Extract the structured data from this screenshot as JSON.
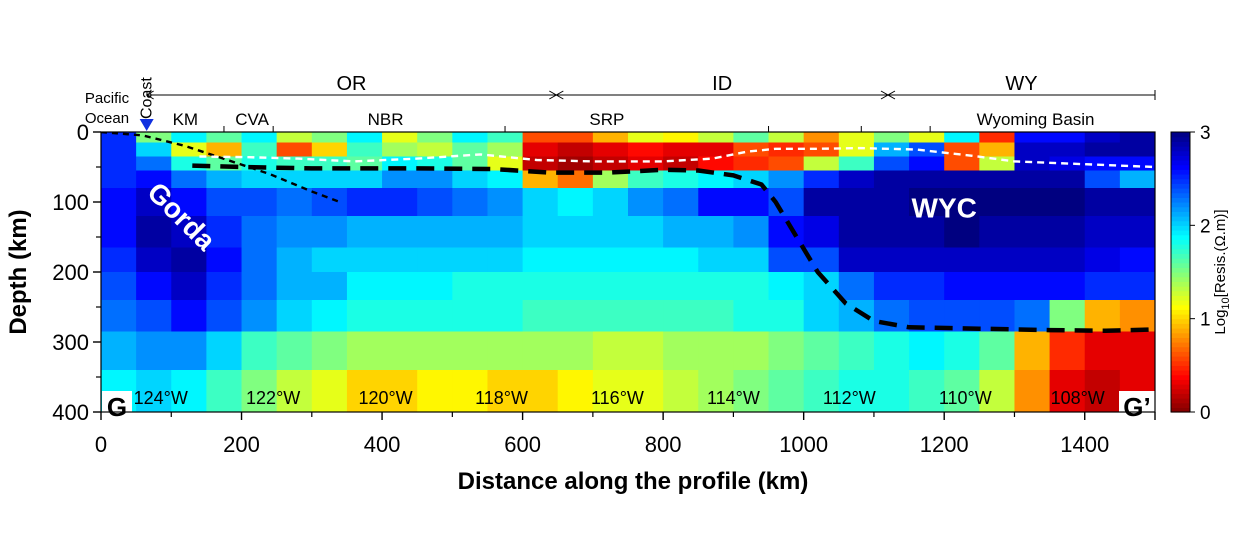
{
  "chart_data": {
    "type": "heatmap",
    "title": "",
    "xlabel": "Distance along the profile (km)",
    "ylabel": "Depth (km)",
    "xlim": [
      0,
      1500
    ],
    "ylim": [
      0,
      400
    ],
    "y_inverted": true,
    "x_ticks": [
      "0",
      "200",
      "400",
      "600",
      "800",
      "1000",
      "1200",
      "1400"
    ],
    "x_tick_values": [
      0,
      200,
      400,
      600,
      800,
      1000,
      1200,
      1400
    ],
    "y_ticks": [
      "0",
      "100",
      "200",
      "300",
      "400"
    ],
    "y_tick_values": [
      0,
      100,
      200,
      300,
      400
    ],
    "colorbar": {
      "label": "Log10[Resis.(Ω.m)]",
      "label_main": "Log",
      "label_sub": "10",
      "label_rest": "[Resis.(Ω.m)]",
      "ticks": [
        "0",
        "1",
        "2",
        "3"
      ],
      "tick_values": [
        0,
        1,
        2,
        3
      ],
      "range": [
        0,
        3
      ],
      "colormap": "jet_reversed"
    },
    "states": [
      {
        "label": "OR",
        "x_start": 65,
        "x_end": 648
      },
      {
        "label": "ID",
        "x_start": 648,
        "x_end": 1120
      },
      {
        "label": "WY",
        "x_start": 1120,
        "x_end": 1500
      }
    ],
    "provinces": [
      {
        "label": "KM",
        "x": 120
      },
      {
        "label": "CVA",
        "x": 215
      },
      {
        "label": "NBR",
        "x": 405
      },
      {
        "label": "SRP",
        "x": 720
      },
      {
        "label": "Wyoming Basin",
        "x": 1330
      }
    ],
    "province_boundaries": [
      175,
      245,
      575,
      950,
      1082,
      1180
    ],
    "coast": {
      "label": "Coast",
      "x": 65
    },
    "ocean_label": [
      "Pacific",
      "Ocean"
    ],
    "longitudes": [
      {
        "label": "124°W",
        "x": 85
      },
      {
        "label": "122°W",
        "x": 245
      },
      {
        "label": "120°W",
        "x": 405
      },
      {
        "label": "118°W",
        "x": 570
      },
      {
        "label": "116°W",
        "x": 735
      },
      {
        "label": "114°W",
        "x": 900
      },
      {
        "label": "112°W",
        "x": 1065
      },
      {
        "label": "110°W",
        "x": 1230
      },
      {
        "label": "108°W",
        "x": 1390
      }
    ],
    "annotations": [
      {
        "label": "Gorda",
        "x": 105,
        "y": 130,
        "rotate": 45
      },
      {
        "label": "WYC",
        "x": 1200,
        "y": 122,
        "rotate": 0
      }
    ],
    "corner_labels": {
      "left": "G",
      "right": "G’"
    },
    "rows": [
      {
        "depth": [
          0,
          15
        ],
        "vals": [
          2.5,
          1.5,
          1.9,
          1.6,
          1.9,
          1.3,
          1.5,
          1.9,
          1.2,
          1.5,
          1.9,
          1.7,
          0.6,
          0.6,
          0.9,
          1.2,
          1.1,
          1.3,
          1.6,
          1.3,
          0.8,
          1.2,
          1.5,
          1.2,
          1.9,
          0.5,
          2.6,
          2.6,
          2.8,
          2.9
        ]
      },
      {
        "depth": [
          15,
          35
        ],
        "vals": [
          2.5,
          2.0,
          1.2,
          0.9,
          1.7,
          0.6,
          1.0,
          1.7,
          1.4,
          1.3,
          1.6,
          1.4,
          0.3,
          0.2,
          0.3,
          0.4,
          0.3,
          0.3,
          0.6,
          0.5,
          0.6,
          1.2,
          2.1,
          2.4,
          0.6,
          0.9,
          2.8,
          2.8,
          2.9,
          2.9
        ]
      },
      {
        "depth": [
          35,
          55
        ],
        "vals": [
          2.5,
          2.3,
          1.8,
          1.6,
          1.8,
          1.7,
          1.7,
          1.6,
          1.9,
          1.8,
          1.6,
          1.2,
          0.2,
          0.1,
          0.2,
          0.3,
          0.2,
          0.4,
          0.5,
          0.6,
          1.3,
          1.7,
          2.4,
          2.6,
          0.6,
          1.3,
          2.8,
          2.7,
          2.6,
          2.6
        ]
      },
      {
        "depth": [
          55,
          80
        ],
        "vals": [
          2.5,
          2.6,
          2.3,
          2.1,
          2.0,
          2.0,
          2.0,
          2.0,
          2.2,
          2.2,
          2.0,
          1.9,
          0.9,
          0.7,
          1.4,
          1.7,
          1.8,
          1.9,
          2.0,
          2.2,
          2.5,
          2.8,
          2.9,
          2.9,
          2.9,
          2.9,
          2.9,
          2.9,
          2.4,
          2.1
        ]
      },
      {
        "depth": [
          80,
          120
        ],
        "vals": [
          2.6,
          2.8,
          2.6,
          2.4,
          2.4,
          2.3,
          2.4,
          2.5,
          2.5,
          2.4,
          2.3,
          2.2,
          2.0,
          1.9,
          2.0,
          2.2,
          2.3,
          2.6,
          2.6,
          2.4,
          2.9,
          2.9,
          2.9,
          3.0,
          3.0,
          3.0,
          3.0,
          3.0,
          2.9,
          2.9
        ]
      },
      {
        "depth": [
          120,
          165
        ],
        "vals": [
          2.6,
          2.9,
          2.8,
          2.5,
          2.3,
          2.2,
          2.2,
          2.1,
          2.1,
          2.1,
          2.1,
          2.1,
          2.0,
          2.0,
          2.0,
          2.0,
          2.1,
          2.1,
          2.2,
          2.6,
          2.7,
          2.9,
          2.9,
          2.9,
          3.0,
          2.9,
          2.9,
          2.9,
          2.8,
          2.8
        ]
      },
      {
        "depth": [
          165,
          200
        ],
        "vals": [
          2.5,
          2.8,
          2.9,
          2.6,
          2.3,
          2.1,
          2.0,
          2.0,
          2.0,
          2.0,
          2.0,
          2.0,
          1.9,
          1.9,
          1.9,
          1.9,
          1.9,
          2.0,
          2.0,
          2.4,
          2.4,
          2.8,
          2.8,
          2.8,
          2.8,
          2.8,
          2.8,
          2.8,
          2.7,
          2.6
        ]
      },
      {
        "depth": [
          200,
          240
        ],
        "vals": [
          2.4,
          2.6,
          2.8,
          2.5,
          2.3,
          2.1,
          2.1,
          1.9,
          1.9,
          1.9,
          1.8,
          1.8,
          1.8,
          1.8,
          1.8,
          1.8,
          1.8,
          1.8,
          1.8,
          1.9,
          2.0,
          2.3,
          2.5,
          2.5,
          2.6,
          2.6,
          2.6,
          2.6,
          2.5,
          2.5
        ]
      },
      {
        "depth": [
          240,
          285
        ],
        "vals": [
          2.3,
          2.4,
          2.6,
          2.4,
          2.2,
          2.0,
          1.9,
          1.8,
          1.8,
          1.8,
          1.8,
          1.8,
          1.7,
          1.7,
          1.7,
          1.7,
          1.7,
          1.7,
          1.8,
          1.8,
          2.0,
          2.1,
          2.3,
          2.4,
          2.4,
          2.4,
          2.3,
          1.5,
          0.9,
          0.8
        ]
      },
      {
        "depth": [
          285,
          340
        ],
        "vals": [
          2.1,
          2.2,
          2.2,
          2.0,
          1.7,
          1.6,
          1.5,
          1.4,
          1.4,
          1.4,
          1.4,
          1.4,
          1.4,
          1.4,
          1.3,
          1.3,
          1.4,
          1.4,
          1.4,
          1.5,
          1.6,
          1.7,
          1.8,
          1.9,
          1.8,
          1.6,
          0.9,
          0.5,
          0.3,
          0.3
        ]
      },
      {
        "depth": [
          340,
          400
        ],
        "vals": [
          1.9,
          2.0,
          1.9,
          1.7,
          1.5,
          1.3,
          1.2,
          1.0,
          1.0,
          1.1,
          1.1,
          1.0,
          1.0,
          1.1,
          1.2,
          1.2,
          1.3,
          1.4,
          1.5,
          1.6,
          1.7,
          1.8,
          1.8,
          1.7,
          1.6,
          1.3,
          0.8,
          0.3,
          0.2,
          0.3
        ]
      }
    ],
    "lines": [
      {
        "name": "slab",
        "style": "short-dash",
        "color": "#000000",
        "points": [
          [
            0,
            0
          ],
          [
            60,
            5
          ],
          [
            120,
            20
          ],
          [
            180,
            40
          ],
          [
            240,
            60
          ],
          [
            300,
            85
          ],
          [
            340,
            100
          ]
        ]
      },
      {
        "name": "lab",
        "style": "long-dash",
        "color": "#000000",
        "points": [
          [
            130,
            48
          ],
          [
            200,
            50
          ],
          [
            300,
            52
          ],
          [
            450,
            52
          ],
          [
            560,
            53
          ],
          [
            640,
            58
          ],
          [
            720,
            58
          ],
          [
            800,
            54
          ],
          [
            850,
            55
          ],
          [
            900,
            62
          ],
          [
            940,
            75
          ],
          [
            960,
            100
          ],
          [
            990,
            150
          ],
          [
            1020,
            200
          ],
          [
            1060,
            245
          ],
          [
            1100,
            270
          ],
          [
            1150,
            279
          ],
          [
            1250,
            281
          ],
          [
            1350,
            283
          ],
          [
            1430,
            284
          ],
          [
            1500,
            282
          ]
        ]
      },
      {
        "name": "moho",
        "style": "white-dash",
        "color": "#ffffff",
        "points": [
          [
            140,
            35
          ],
          [
            210,
            36
          ],
          [
            280,
            38
          ],
          [
            360,
            42
          ],
          [
            450,
            38
          ],
          [
            540,
            32
          ],
          [
            620,
            40
          ],
          [
            700,
            42
          ],
          [
            800,
            42
          ],
          [
            870,
            38
          ],
          [
            920,
            28
          ],
          [
            960,
            24
          ],
          [
            1020,
            24
          ],
          [
            1080,
            23
          ],
          [
            1160,
            25
          ],
          [
            1240,
            34
          ],
          [
            1300,
            42
          ],
          [
            1400,
            46
          ],
          [
            1500,
            50
          ]
        ]
      }
    ]
  }
}
